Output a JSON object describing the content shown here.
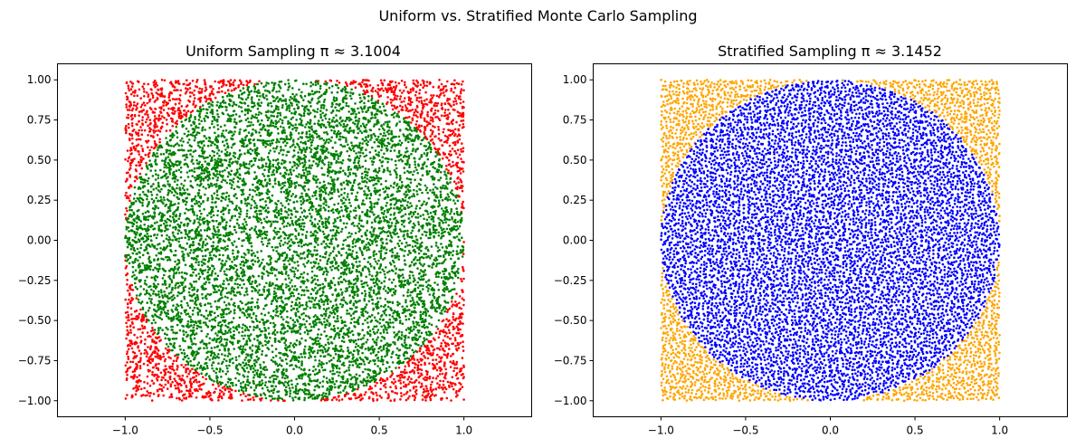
{
  "figure": {
    "title": "Uniform vs. Stratified Monte Carlo Sampling"
  },
  "chart_data": [
    {
      "type": "scatter",
      "title": "Uniform Sampling π ≈ 3.1004",
      "xlabel": "",
      "ylabel": "",
      "xlim": [
        -1.4,
        1.4
      ],
      "ylim": [
        -1.1,
        1.1
      ],
      "grid": false,
      "xticks": [
        -1.0,
        -0.5,
        0.0,
        0.5,
        1.0
      ],
      "xtick_labels": [
        "−1.0",
        "−0.5",
        "0.0",
        "0.5",
        "1.0"
      ],
      "yticks": [
        1.0,
        0.75,
        0.5,
        0.25,
        0.0,
        -0.25,
        -0.5,
        -0.75,
        -1.0
      ],
      "ytick_labels": [
        "1.00",
        "0.75",
        "0.50",
        "0.25",
        "0.00",
        "−0.25",
        "−0.50",
        "−0.75",
        "−1.00"
      ],
      "sampling": "uniform",
      "n_points": 10000,
      "sample_region": {
        "x": [
          -1.0,
          1.0
        ],
        "y": [
          -1.0,
          1.0
        ]
      },
      "pi_estimate": 3.1004,
      "series": [
        {
          "condition": "outside unit circle",
          "color": "#ff0000"
        },
        {
          "condition": "inside unit circle",
          "color": "#008000"
        }
      ]
    },
    {
      "type": "scatter",
      "title": "Stratified Sampling π ≈ 3.1452",
      "xlabel": "",
      "ylabel": "",
      "xlim": [
        -1.4,
        1.4
      ],
      "ylim": [
        -1.1,
        1.1
      ],
      "grid": false,
      "xticks": [
        -1.0,
        -0.5,
        0.0,
        0.5,
        1.0
      ],
      "xtick_labels": [
        "−1.0",
        "−0.5",
        "0.0",
        "0.5",
        "1.0"
      ],
      "yticks": [
        1.0,
        0.75,
        0.5,
        0.25,
        0.0,
        -0.25,
        -0.5,
        -0.75,
        -1.0
      ],
      "ytick_labels": [
        "1.00",
        "0.75",
        "0.50",
        "0.25",
        "0.00",
        "−0.25",
        "−0.50",
        "−0.75",
        "−1.00"
      ],
      "sampling": "stratified",
      "n_points": 10000,
      "sample_region": {
        "x": [
          -1.0,
          1.0
        ],
        "y": [
          -1.0,
          1.0
        ]
      },
      "pi_estimate": 3.1452,
      "series": [
        {
          "condition": "outside unit circle",
          "color": "#ffa500"
        },
        {
          "condition": "inside unit circle",
          "color": "#0000ff"
        }
      ]
    }
  ]
}
